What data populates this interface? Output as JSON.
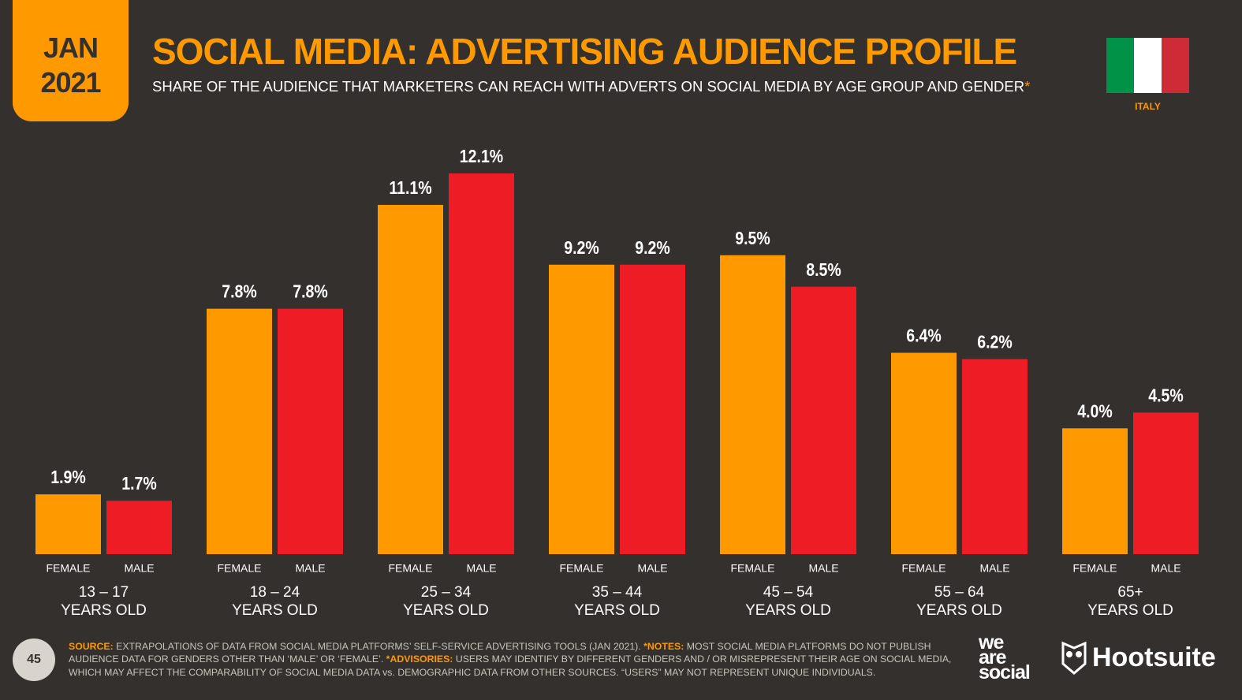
{
  "header": {
    "badge": [
      "JAN",
      "2021"
    ],
    "country": "ITALY",
    "page_number": "45"
  },
  "chart_data": {
    "type": "bar",
    "title": "SOCIAL MEDIA: ADVERTISING AUDIENCE PROFILE",
    "subtitle": "SHARE OF THE AUDIENCE THAT MARKETERS CAN REACH WITH ADVERTS ON SOCIAL MEDIA BY AGE GROUP AND GENDER",
    "subtitle_mark": "*",
    "categories": [
      [
        "13 – 17",
        "YEARS OLD"
      ],
      [
        "18 – 24",
        "YEARS OLD"
      ],
      [
        "25 – 34",
        "YEARS OLD"
      ],
      [
        "35 – 44",
        "YEARS OLD"
      ],
      [
        "45 – 54",
        "YEARS OLD"
      ],
      [
        "55 – 64",
        "YEARS OLD"
      ],
      [
        "65+",
        "YEARS OLD"
      ]
    ],
    "series": [
      {
        "name": "FEMALE",
        "color": "#ff9900",
        "values": [
          1.9,
          7.8,
          11.1,
          9.2,
          9.5,
          6.4,
          4.0
        ],
        "value_labels": [
          "1.9%",
          "7.8%",
          "11.1%",
          "9.2%",
          "9.5%",
          "6.4%",
          "4.0%"
        ]
      },
      {
        "name": "MALE",
        "color": "#ee1c25",
        "values": [
          1.7,
          7.8,
          12.1,
          9.2,
          8.5,
          6.2,
          4.5
        ],
        "value_labels": [
          "1.7%",
          "7.8%",
          "12.1%",
          "9.2%",
          "8.5%",
          "6.2%",
          "4.5%"
        ]
      }
    ]
  },
  "footer": {
    "notes": [
      {
        "label": "SOURCE:",
        "text": " EXTRAPOLATIONS OF DATA FROM SOCIAL MEDIA PLATFORMS’ SELF-SERVICE ADVERTISING TOOLS (JAN 2021). "
      },
      {
        "label": "*NOTES:",
        "text": " MOST SOCIAL MEDIA PLATFORMS DO NOT PUBLISH AUDIENCE DATA FOR GENDERS OTHER THAN ‘MALE’ OR ‘FEMALE’. "
      },
      {
        "label": "*ADVISORIES:",
        "text": " USERS MAY IDENTIFY BY DIFFERENT GENDERS AND / OR MISREPRESENT THEIR AGE ON SOCIAL MEDIA, WHICH MAY AFFECT THE COMPARABILITY OF SOCIAL MEDIA DATA vs. DEMOGRAPHIC DATA FROM OTHER SOURCES. “USERS” MAY NOT REPRESENT UNIQUE INDIVIDUALS."
      }
    ],
    "logos": [
      [
        "we",
        "are",
        "social"
      ],
      "Hootsuite"
    ]
  }
}
